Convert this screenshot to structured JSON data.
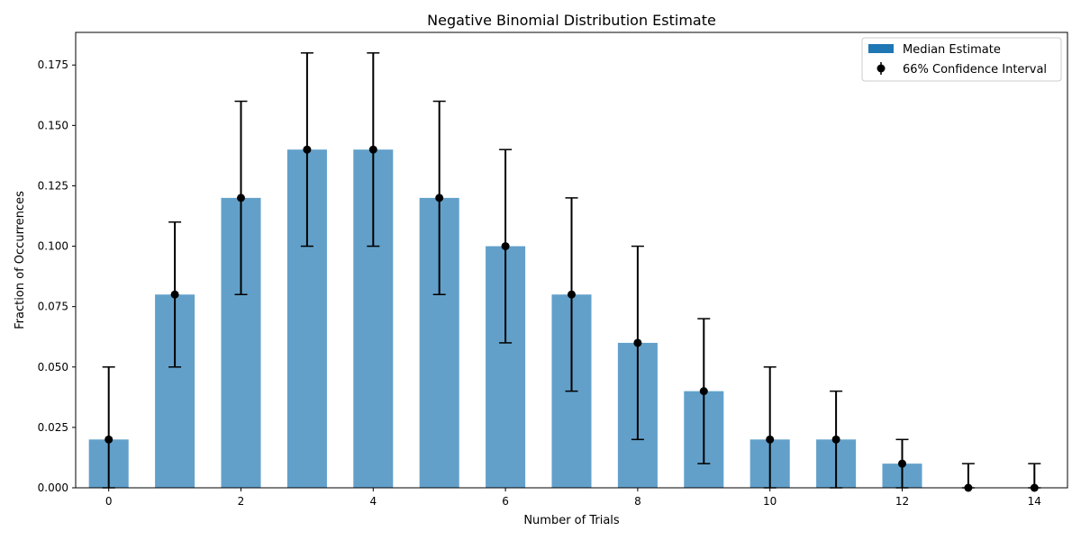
{
  "chart_data": {
    "type": "bar",
    "title": "Negative Binomial Distribution Estimate",
    "xlabel": "Number of Trials",
    "ylabel": "Fraction of Occurrences",
    "x": [
      0,
      1,
      2,
      3,
      4,
      5,
      6,
      7,
      8,
      9,
      10,
      11,
      12,
      13,
      14
    ],
    "values": [
      0.02,
      0.08,
      0.12,
      0.14,
      0.14,
      0.12,
      0.1,
      0.08,
      0.06,
      0.04,
      0.02,
      0.02,
      0.01,
      0.0,
      0.0
    ],
    "ci_lower": [
      0.0,
      0.05,
      0.08,
      0.1,
      0.1,
      0.08,
      0.06,
      0.04,
      0.02,
      0.01,
      0.0,
      0.0,
      0.0,
      0.0,
      0.0
    ],
    "ci_upper": [
      0.05,
      0.11,
      0.16,
      0.18,
      0.18,
      0.16,
      0.14,
      0.12,
      0.1,
      0.07,
      0.05,
      0.04,
      0.02,
      0.01,
      0.01
    ],
    "xlim": [
      -0.5,
      14.5
    ],
    "ylim": [
      0,
      0.1885
    ],
    "x_ticks": [
      0,
      2,
      4,
      6,
      8,
      10,
      12,
      14
    ],
    "x_tick_labels": [
      "0",
      "2",
      "4",
      "6",
      "8",
      "10",
      "12",
      "14"
    ],
    "y_ticks": [
      0,
      0.025,
      0.05,
      0.075,
      0.1,
      0.125,
      0.15,
      0.175
    ],
    "y_tick_labels": [
      "0.000",
      "0.025",
      "0.050",
      "0.075",
      "0.100",
      "0.125",
      "0.150",
      "0.175"
    ],
    "bar_width": 0.6,
    "legend": {
      "position": "top-right",
      "entries": [
        "Median Estimate",
        "66% Confidence Interval"
      ]
    },
    "colors": {
      "bar": "#1f77b4",
      "bar_legend": "#1f77b4",
      "errorbar": "#000000",
      "point": "#000000"
    }
  }
}
